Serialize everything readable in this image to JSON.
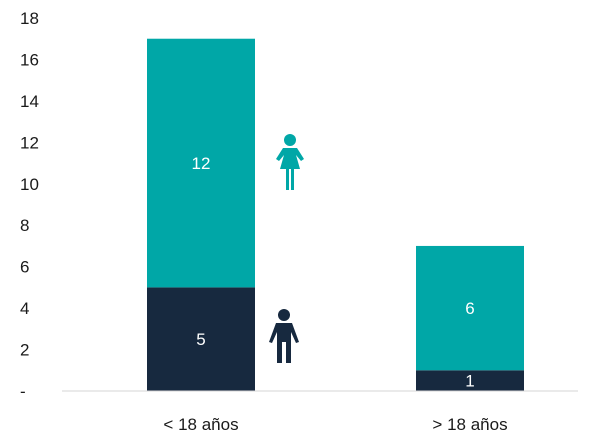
{
  "chart_data": {
    "type": "bar",
    "stacked": true,
    "categories": [
      "< 18 años",
      "> 18 años"
    ],
    "series": [
      {
        "color": "#17293f",
        "icon": "male-person-icon",
        "values": [
          5,
          1
        ]
      },
      {
        "color": "#00a7a7",
        "icon": "female-person-icon",
        "values": [
          12,
          6
        ]
      }
    ],
    "yticks": [
      "-",
      "2",
      "4",
      "6",
      "8",
      "10",
      "12",
      "14",
      "16",
      "18"
    ],
    "ylim": [
      0,
      18
    ],
    "grid": false,
    "legend": "none"
  }
}
